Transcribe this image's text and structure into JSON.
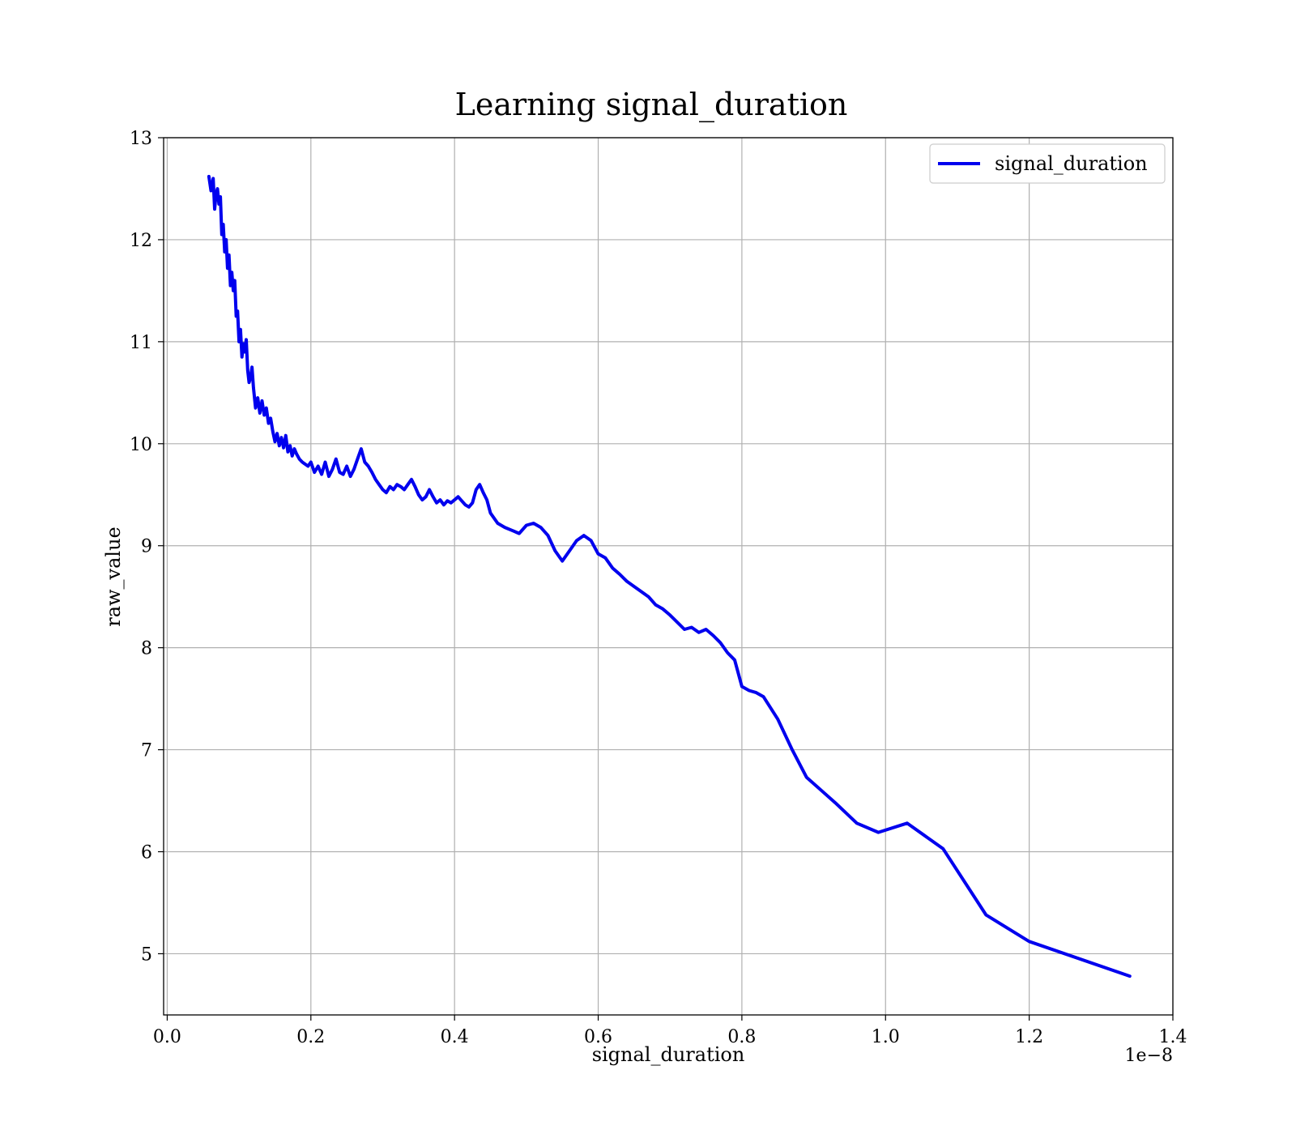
{
  "chart_data": {
    "type": "line",
    "title": "Learning signal_duration",
    "xlabel": "signal_duration",
    "ylabel": "raw_value",
    "x_scale_label": "1e−8",
    "xlim": [
      -0.005,
      1.4
    ],
    "ylim": [
      4.4,
      13.0
    ],
    "x_ticks": [
      0.0,
      0.2,
      0.4,
      0.6,
      0.8,
      1.0,
      1.2,
      1.4
    ],
    "x_tick_labels": [
      "0.0",
      "0.2",
      "0.4",
      "0.6",
      "0.8",
      "1.0",
      "1.2",
      "1.4"
    ],
    "y_ticks": [
      5,
      6,
      7,
      8,
      9,
      10,
      11,
      12,
      13
    ],
    "y_tick_labels": [
      "5",
      "6",
      "7",
      "8",
      "9",
      "10",
      "11",
      "12",
      "13"
    ],
    "grid": true,
    "legend": "top-right",
    "series": [
      {
        "name": "signal_duration",
        "color": "#0000ee",
        "x": [
          0.058,
          0.061,
          0.064,
          0.066,
          0.068,
          0.07,
          0.072,
          0.074,
          0.076,
          0.078,
          0.08,
          0.082,
          0.084,
          0.086,
          0.088,
          0.09,
          0.092,
          0.094,
          0.096,
          0.098,
          0.1,
          0.102,
          0.104,
          0.106,
          0.108,
          0.11,
          0.112,
          0.114,
          0.116,
          0.118,
          0.12,
          0.123,
          0.126,
          0.129,
          0.132,
          0.135,
          0.138,
          0.141,
          0.144,
          0.147,
          0.15,
          0.153,
          0.156,
          0.159,
          0.162,
          0.165,
          0.168,
          0.171,
          0.174,
          0.177,
          0.18,
          0.184,
          0.188,
          0.192,
          0.196,
          0.2,
          0.205,
          0.21,
          0.215,
          0.22,
          0.225,
          0.23,
          0.235,
          0.24,
          0.245,
          0.25,
          0.255,
          0.26,
          0.265,
          0.27,
          0.275,
          0.28,
          0.285,
          0.29,
          0.295,
          0.3,
          0.305,
          0.31,
          0.315,
          0.32,
          0.325,
          0.33,
          0.335,
          0.34,
          0.345,
          0.35,
          0.355,
          0.36,
          0.365,
          0.37,
          0.375,
          0.38,
          0.385,
          0.39,
          0.395,
          0.4,
          0.405,
          0.41,
          0.415,
          0.42,
          0.425,
          0.43,
          0.435,
          0.44,
          0.445,
          0.45,
          0.46,
          0.47,
          0.48,
          0.49,
          0.5,
          0.51,
          0.52,
          0.53,
          0.54,
          0.55,
          0.56,
          0.57,
          0.58,
          0.59,
          0.6,
          0.61,
          0.62,
          0.63,
          0.64,
          0.65,
          0.66,
          0.67,
          0.68,
          0.69,
          0.7,
          0.71,
          0.72,
          0.73,
          0.74,
          0.75,
          0.76,
          0.77,
          0.78,
          0.79,
          0.8,
          0.81,
          0.82,
          0.83,
          0.85,
          0.87,
          0.89,
          0.93,
          0.96,
          0.99,
          1.03,
          1.08,
          1.14,
          1.2,
          1.34
        ],
        "y": [
          12.62,
          12.48,
          12.6,
          12.3,
          12.45,
          12.5,
          12.35,
          12.42,
          12.05,
          12.15,
          11.88,
          12.0,
          11.72,
          11.85,
          11.55,
          11.68,
          11.5,
          11.6,
          11.25,
          11.3,
          11.0,
          11.12,
          10.85,
          10.98,
          10.9,
          11.02,
          10.72,
          10.6,
          10.65,
          10.75,
          10.55,
          10.35,
          10.45,
          10.3,
          10.42,
          10.28,
          10.35,
          10.2,
          10.25,
          10.12,
          10.02,
          10.1,
          9.98,
          10.06,
          9.96,
          10.08,
          9.92,
          9.98,
          9.88,
          9.95,
          9.9,
          9.85,
          9.82,
          9.8,
          9.78,
          9.82,
          9.72,
          9.78,
          9.7,
          9.82,
          9.68,
          9.75,
          9.85,
          9.72,
          9.7,
          9.78,
          9.68,
          9.75,
          9.85,
          9.95,
          9.82,
          9.78,
          9.72,
          9.65,
          9.6,
          9.55,
          9.52,
          9.58,
          9.55,
          9.6,
          9.58,
          9.55,
          9.6,
          9.65,
          9.58,
          9.5,
          9.45,
          9.48,
          9.55,
          9.48,
          9.42,
          9.45,
          9.4,
          9.44,
          9.42,
          9.45,
          9.48,
          9.44,
          9.4,
          9.38,
          9.42,
          9.55,
          9.6,
          9.52,
          9.45,
          9.32,
          9.22,
          9.18,
          9.15,
          9.12,
          9.2,
          9.22,
          9.18,
          9.1,
          8.95,
          8.85,
          8.95,
          9.05,
          9.1,
          9.05,
          8.92,
          8.88,
          8.78,
          8.72,
          8.65,
          8.6,
          8.55,
          8.5,
          8.42,
          8.38,
          8.32,
          8.25,
          8.18,
          8.2,
          8.15,
          8.18,
          8.12,
          8.05,
          7.95,
          7.88,
          7.62,
          7.58,
          7.56,
          7.52,
          7.3,
          7.0,
          6.73,
          6.48,
          6.28,
          6.19,
          6.28,
          6.03,
          5.38,
          5.12,
          4.78
        ]
      }
    ]
  }
}
